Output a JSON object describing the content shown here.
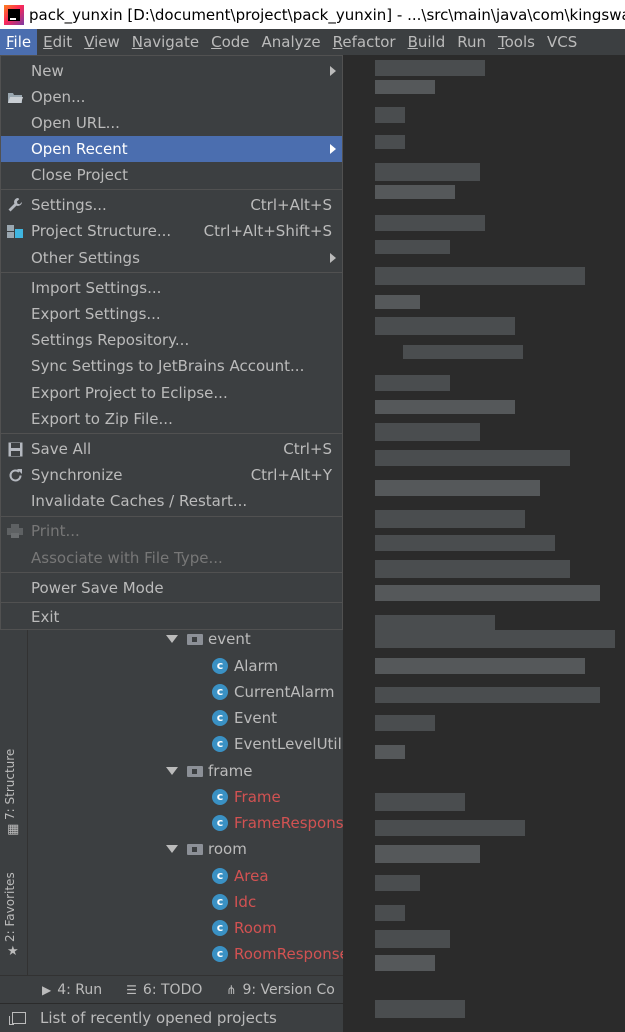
{
  "window": {
    "title": "pack_yunxin [D:\\document\\project\\pack_yunxin] - ...\\src\\main\\java\\com\\kingsware\\"
  },
  "menubar": [
    {
      "label": "File",
      "mnemonic": "F",
      "rest": "ile"
    },
    {
      "label": "Edit",
      "mnemonic": "E",
      "rest": "dit"
    },
    {
      "label": "View",
      "mnemonic": "V",
      "rest": "iew"
    },
    {
      "label": "Navigate",
      "mnemonic": "N",
      "rest": "avigate"
    },
    {
      "label": "Code",
      "mnemonic": "C",
      "rest": "ode"
    },
    {
      "label": "Analyze",
      "mnemonic": "",
      "rest": "Analyze"
    },
    {
      "label": "Refactor",
      "mnemonic": "R",
      "rest": "efactor"
    },
    {
      "label": "Build",
      "mnemonic": "B",
      "rest": "uild"
    },
    {
      "label": "Run",
      "mnemonic": "",
      "rest": "Run"
    },
    {
      "label": "Tools",
      "mnemonic": "T",
      "rest": "ools"
    },
    {
      "label": "VCS",
      "mnemonic": "",
      "rest": "VCS"
    }
  ],
  "file_menu": {
    "new": "New",
    "open": "Open...",
    "open_url": "Open URL...",
    "open_recent": "Open Recent",
    "close_project": "Close Project",
    "settings": "Settings...",
    "settings_shortcut": "Ctrl+Alt+S",
    "project_structure": "Project Structure...",
    "project_structure_shortcut": "Ctrl+Alt+Shift+S",
    "other_settings": "Other Settings",
    "import_settings": "Import Settings...",
    "export_settings": "Export Settings...",
    "settings_repository": "Settings Repository...",
    "sync_settings": "Sync Settings to JetBrains Account...",
    "export_eclipse": "Export Project to Eclipse...",
    "export_zip": "Export to Zip File...",
    "save_all": "Save All",
    "save_all_shortcut": "Ctrl+S",
    "synchronize": "Synchronize",
    "synchronize_shortcut": "Ctrl+Alt+Y",
    "invalidate": "Invalidate Caches / Restart...",
    "print": "Print...",
    "associate": "Associate with File Type...",
    "power_save": "Power Save Mode",
    "exit": "Exit"
  },
  "project_tree": [
    {
      "kind": "folder",
      "label": "event"
    },
    {
      "kind": "class",
      "label": "Alarm",
      "error": false
    },
    {
      "kind": "class",
      "label": "CurrentAlarm",
      "error": false
    },
    {
      "kind": "class",
      "label": "Event",
      "error": false
    },
    {
      "kind": "class",
      "label": "EventLevelUtil",
      "error": false
    },
    {
      "kind": "folder",
      "label": "frame"
    },
    {
      "kind": "class",
      "label": "Frame",
      "error": true
    },
    {
      "kind": "class",
      "label": "FrameResponse",
      "error": true
    },
    {
      "kind": "folder",
      "label": "room"
    },
    {
      "kind": "class",
      "label": "Area",
      "error": true
    },
    {
      "kind": "class",
      "label": "Idc",
      "error": true
    },
    {
      "kind": "class",
      "label": "Room",
      "error": true
    },
    {
      "kind": "class",
      "label": "RoomResponse",
      "error": true
    }
  ],
  "side_tabs": {
    "structure": "7: Structure",
    "favorites": "2: Favorites"
  },
  "bottom_tabs": {
    "run": "4: Run",
    "todo": "6: TODO",
    "version_control": "9: Version Co"
  },
  "status": {
    "text": "List of recently opened projects"
  },
  "colors": {
    "highlight": "#4b6eaf",
    "error_class": "#d25252",
    "class_icon": "#3a91c4"
  }
}
